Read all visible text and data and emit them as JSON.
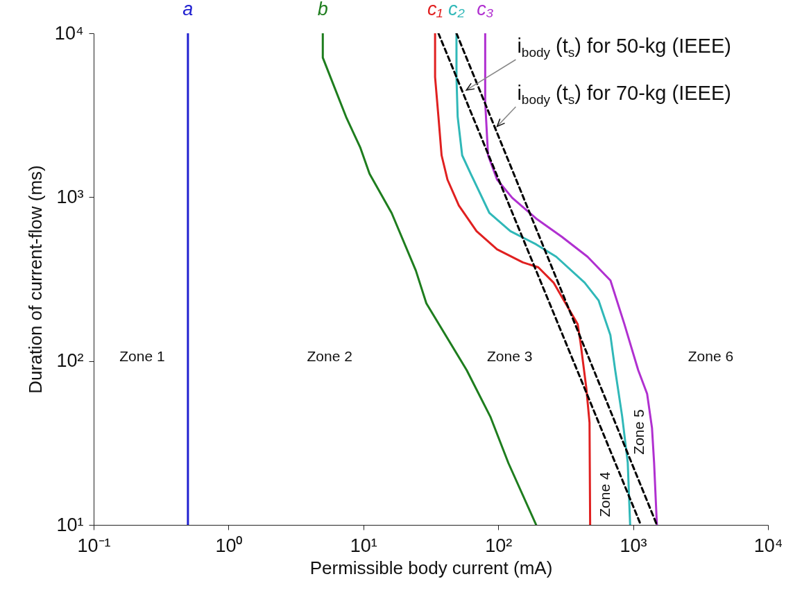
{
  "chart_data": {
    "type": "line",
    "xlabel": "Permissible body current (mA)",
    "ylabel": "Duration of current-flow (ms)",
    "log": "xy",
    "xlim": [
      0.1,
      10000
    ],
    "ylim": [
      10,
      10000
    ],
    "xticks": [
      {
        "value": 0.1,
        "label": "10⁻¹"
      },
      {
        "value": 1,
        "label": "10⁰"
      },
      {
        "value": 10,
        "label": "10¹"
      },
      {
        "value": 100,
        "label": "10²"
      },
      {
        "value": 1000,
        "label": "10³"
      },
      {
        "value": 10000,
        "label": "10⁴"
      }
    ],
    "yticks": [
      {
        "value": 10,
        "label": "10¹"
      },
      {
        "value": 100,
        "label": "10²"
      },
      {
        "value": 1000,
        "label": "10³"
      },
      {
        "value": 10000,
        "label": "10⁴"
      }
    ],
    "grid": false,
    "legend": false,
    "marker": "none",
    "line_style": "solid",
    "series": [
      {
        "name": "a",
        "color": "#2020d0",
        "x": [
          0.5,
          0.5
        ],
        "values": [
          10000,
          10
        ]
      },
      {
        "name": "b",
        "color": "#1e7d1e",
        "x": [
          5,
          5,
          7.5,
          9.5,
          11.1,
          16.2,
          24.5,
          29.3,
          36.3,
          58.3,
          87.3,
          119,
          191
        ],
        "values": [
          10000,
          7100,
          3040,
          2000,
          1390,
          800,
          356,
          225,
          168,
          88,
          45.8,
          23.8,
          10
        ]
      },
      {
        "name": "c₁",
        "color": "#e02020",
        "x": [
          34,
          34,
          36,
          38,
          42,
          51,
          69,
          98,
          152,
          198,
          257,
          307,
          388,
          407,
          450,
          475,
          480
        ],
        "values": [
          10000,
          5400,
          3100,
          1800,
          1280,
          890,
          620,
          480,
          400,
          373,
          301,
          234,
          168,
          130,
          68,
          42,
          10
        ]
      },
      {
        "name": "c₂",
        "color": "#30b8b8",
        "x": [
          49,
          49,
          50,
          54,
          63,
          86,
          123,
          191,
          269,
          437,
          555,
          678,
          736,
          829,
          912,
          950
        ],
        "values": [
          10000,
          5400,
          3100,
          1800,
          1370,
          800,
          620,
          515,
          433,
          301,
          234,
          144,
          88,
          46,
          24,
          10
        ]
      },
      {
        "name": "c₃",
        "color": "#b030d0",
        "x": [
          80,
          80,
          84,
          98,
          127,
          191,
          296,
          459,
          679,
          861,
          1090,
          1270,
          1380,
          1430,
          1500
        ],
        "values": [
          10000,
          3800,
          1800,
          1280,
          990,
          740,
          573,
          433,
          310,
          168,
          88,
          63,
          39,
          24,
          10
        ]
      },
      {
        "type": "line",
        "color": "#000000",
        "line_style": "dashed",
        "x": [
          36,
          1140
        ],
        "values": [
          10000,
          10
        ]
      },
      {
        "type": "line",
        "color": "#000000",
        "line_style": "dashed",
        "x": [
          49,
          1500
        ],
        "values": [
          10000,
          10
        ]
      }
    ],
    "annotations": [
      {
        "text": "i$_{body}$ (t$_{s}$) for 50-kg (IEEE)",
        "x": 58,
        "y": 4500
      },
      {
        "text": "i$_{body}$ (t$_{s}$) for 70-kg (IEEE)",
        "x": 98,
        "y": 2700
      },
      "Zone 1",
      "Zone 2",
      "Zone 3",
      "Zone 6",
      "Zone 4",
      "Zone 5"
    ]
  }
}
